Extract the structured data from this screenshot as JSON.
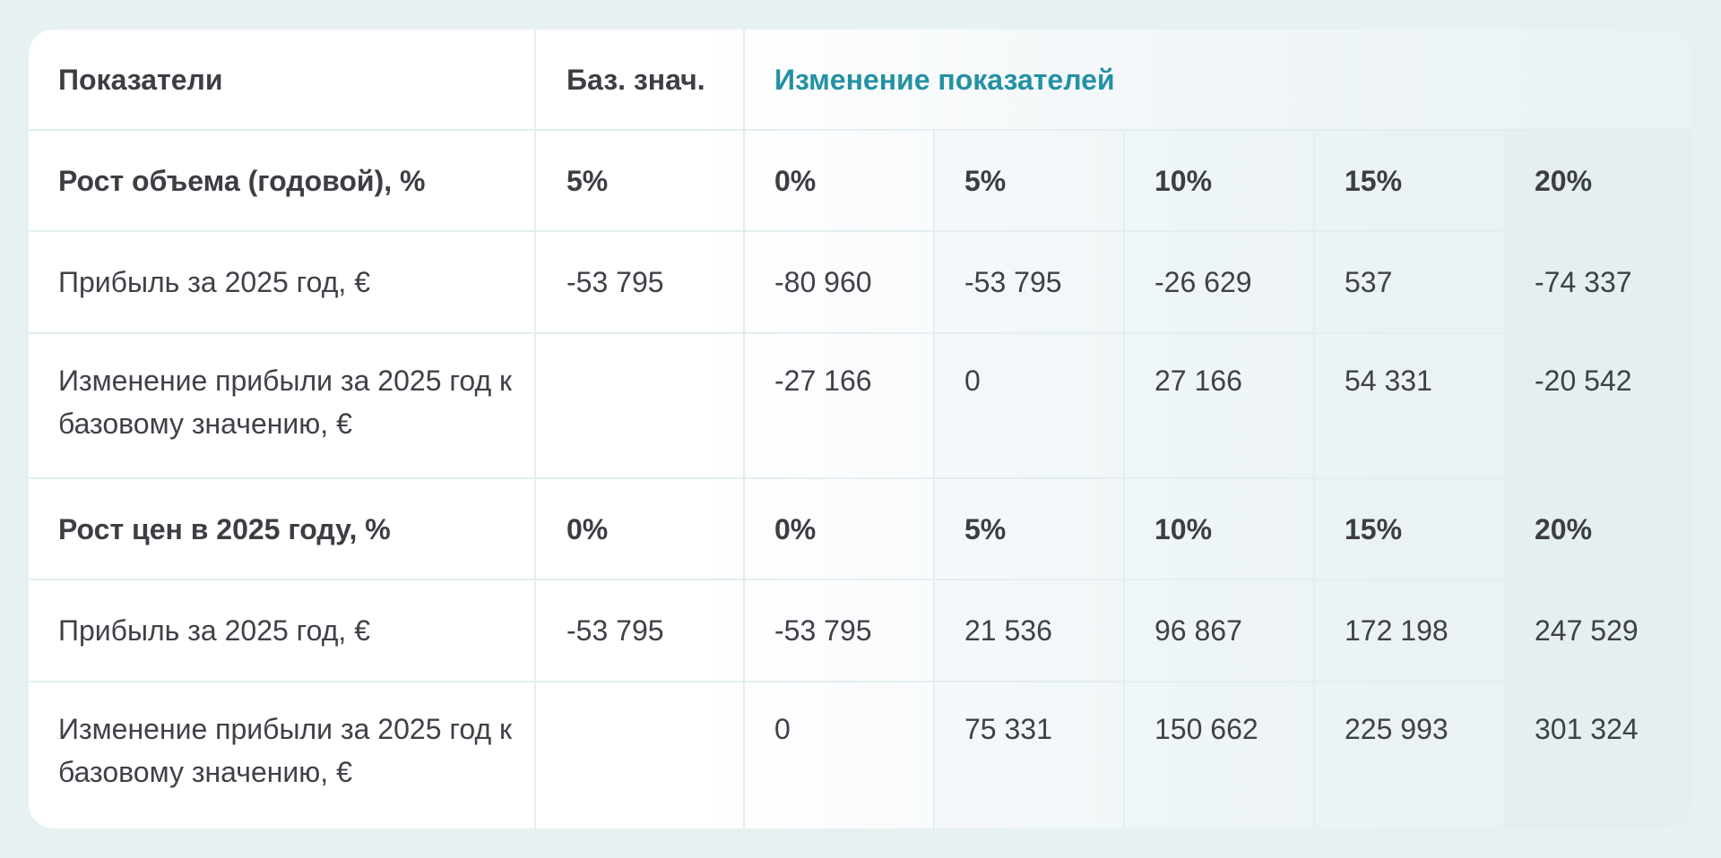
{
  "table": {
    "header": {
      "indicators": "Показатели",
      "base_value": "Баз. знач.",
      "changes": "Изменение показателей"
    },
    "rows": [
      {
        "label": "Рост объема (годовой), %",
        "base": "5%",
        "values": [
          "0%",
          "5%",
          "10%",
          "15%",
          "20%"
        ],
        "bold": true
      },
      {
        "label": "Прибыль за 2025 год, €",
        "base": "-53 795",
        "values": [
          "-80 960",
          "-53 795",
          "-26 629",
          "537",
          "-74 337"
        ],
        "bold": false
      },
      {
        "label": "Изменение прибыли за 2025 год к базовому значению, €",
        "base": "",
        "values": [
          "-27 166",
          "0",
          "27 166",
          "54 331",
          "-20 542"
        ],
        "bold": false
      },
      {
        "label": "Рост цен в 2025 году, %",
        "base": "0%",
        "values": [
          "0%",
          "5%",
          "10%",
          "15%",
          "20%"
        ],
        "bold": true
      },
      {
        "label": "Прибыль за 2025 год, €",
        "base": "-53 795",
        "values": [
          "-53 795",
          "21 536",
          "96 867",
          "172 198",
          "247 529"
        ],
        "bold": false
      },
      {
        "label": "Изменение прибыли за 2025 год к базовому значению, €",
        "base": "",
        "values": [
          "0",
          "75 331",
          "150 662",
          "225 993",
          "301 324"
        ],
        "bold": false
      }
    ]
  }
}
